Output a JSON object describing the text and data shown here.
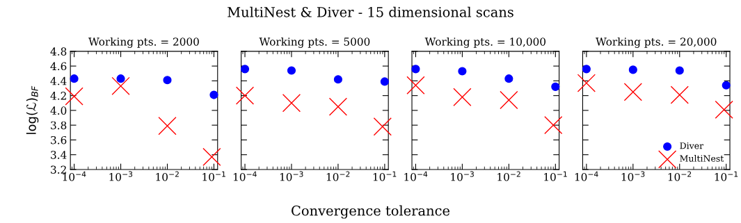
{
  "chart_data": [
    {
      "type": "scatter",
      "title": "Working pts. = 2000",
      "annotations": [
        "MultiNest & Diver - 15 dimensional scans"
      ],
      "xlabel": "Convergence tolerance",
      "ylabel": "log(ℒ)$_{BF}$",
      "log": "x",
      "xlim": [
        8.3e-05,
        0.12
      ],
      "xticks": [
        {
          "value": 0.0001,
          "label": "10$^{−4}$"
        },
        {
          "value": 0.001,
          "label": "10$^{−3}$"
        },
        {
          "value": 0.01,
          "label": "10$^{−2}$"
        },
        {
          "value": 0.1,
          "label": "10$^{−1}$"
        }
      ],
      "ylim": [
        3.2,
        4.8
      ],
      "yticks": [
        3.2,
        3.4,
        3.6,
        3.8,
        {
          "value": 4.0,
          "label": "4.0"
        },
        4.2,
        4.4,
        4.6,
        4.8
      ],
      "series": [
        {
          "color": "#0000ff",
          "marker": "circle",
          "x": [
            0.0001,
            0.001,
            0.01,
            0.1
          ],
          "values": [
            4.43,
            4.43,
            4.41,
            4.21
          ]
        },
        {
          "color": "#ff0000",
          "marker": "cross",
          "x": [
            0.0001,
            0.001,
            0.01,
            0.09
          ],
          "values": [
            4.19,
            4.33,
            3.79,
            3.37
          ]
        }
      ]
    },
    {
      "type": "scatter",
      "title": "Working pts. = 5000",
      "log": "x",
      "tick_labels": "x",
      "xlim": [
        8.3e-05,
        0.12
      ],
      "xticks": [
        {
          "value": 0.0001,
          "label": "10$^{−4}$"
        },
        {
          "value": 0.001,
          "label": "10$^{−3}$"
        },
        {
          "value": 0.01,
          "label": "10$^{−2}$"
        },
        {
          "value": 0.1,
          "label": "10$^{−1}$"
        }
      ],
      "ylim": [
        3.2,
        4.8
      ],
      "yticks": [
        3.2,
        3.4,
        3.6,
        3.8,
        4.0,
        4.2,
        4.4,
        4.6,
        4.8
      ],
      "series": [
        {
          "color": "#0000ff",
          "marker": "circle",
          "x": [
            0.0001,
            0.001,
            0.01,
            0.1
          ],
          "values": [
            4.56,
            4.54,
            4.42,
            4.39
          ]
        },
        {
          "color": "#ff0000",
          "marker": "cross",
          "x": [
            0.0001,
            0.001,
            0.01,
            0.09
          ],
          "values": [
            4.2,
            4.1,
            4.05,
            3.78
          ]
        }
      ]
    },
    {
      "type": "scatter",
      "title": "Working pts. = 10,000",
      "log": "x",
      "tick_labels": "x",
      "xlim": [
        8.3e-05,
        0.12
      ],
      "xticks": [
        {
          "value": 0.0001,
          "label": "10$^{−4}$"
        },
        {
          "value": 0.001,
          "label": "10$^{−3}$"
        },
        {
          "value": 0.01,
          "label": "10$^{−2}$"
        },
        {
          "value": 0.1,
          "label": "10$^{−1}$"
        }
      ],
      "ylim": [
        3.2,
        4.8
      ],
      "yticks": [
        3.2,
        3.4,
        3.6,
        3.8,
        4.0,
        4.2,
        4.4,
        4.6,
        4.8
      ],
      "series": [
        {
          "color": "#0000ff",
          "marker": "circle",
          "x": [
            0.0001,
            0.001,
            0.01,
            0.1
          ],
          "values": [
            4.56,
            4.53,
            4.43,
            4.32
          ]
        },
        {
          "color": "#ff0000",
          "marker": "cross",
          "x": [
            0.0001,
            0.001,
            0.01,
            0.09
          ],
          "values": [
            4.34,
            4.18,
            4.14,
            3.8
          ]
        }
      ]
    },
    {
      "type": "scatter",
      "title": "Working pts. = 20,000",
      "log": "x",
      "tick_labels": "x",
      "legend": "bottom right",
      "xlim": [
        8.3e-05,
        0.12
      ],
      "xticks": [
        {
          "value": 0.0001,
          "label": "10$^{−4}$"
        },
        {
          "value": 0.001,
          "label": "10$^{−3}$"
        },
        {
          "value": 0.01,
          "label": "10$^{−2}$"
        },
        {
          "value": 0.1,
          "label": "10$^{−1}$"
        }
      ],
      "ylim": [
        3.2,
        4.8
      ],
      "yticks": [
        3.2,
        3.4,
        3.6,
        3.8,
        4.0,
        4.2,
        4.4,
        4.6,
        4.8
      ],
      "series": [
        {
          "name": "Diver",
          "color": "#0000ff",
          "marker": "circle",
          "x": [
            0.0001,
            0.001,
            0.01,
            0.1
          ],
          "values": [
            4.56,
            4.55,
            4.54,
            4.34
          ]
        },
        {
          "name": "MultiNest",
          "color": "#ff0000",
          "marker": "cross",
          "x": [
            0.0001,
            0.001,
            0.01,
            0.09
          ],
          "values": [
            4.37,
            4.25,
            4.21,
            4.01
          ]
        }
      ]
    }
  ]
}
